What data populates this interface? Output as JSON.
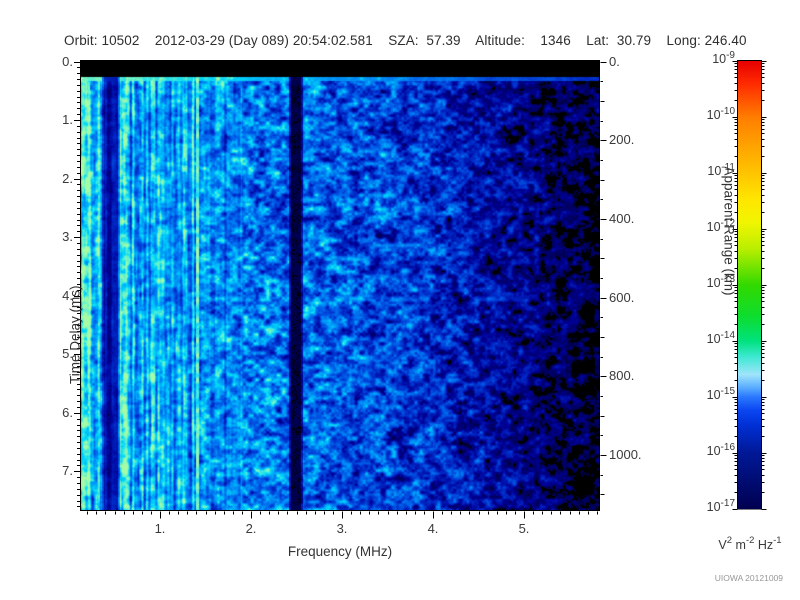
{
  "header": {
    "line": "Orbit: 10502    2012-03-29 (Day 089) 20:54:02.581    SZA:  57.39    Altitude:    1346    Lat:  30.79    Long: 246.40"
  },
  "plot": {
    "x_axis": {
      "label": "Frequency (MHz)",
      "tick_labels": [
        "1.",
        "2.",
        "3.",
        "4.",
        "5."
      ],
      "tick_values": [
        1,
        2,
        3,
        4,
        5
      ]
    },
    "y_axis_left": {
      "label": "Time Delay (ms)",
      "tick_labels": [
        "0.",
        "1.",
        "2.",
        "3.",
        "4.",
        "5.",
        "6.",
        "7."
      ],
      "tick_values": [
        0,
        1,
        2,
        3,
        4,
        5,
        6,
        7
      ]
    },
    "y_axis_right": {
      "label": "Apparent Range (km)",
      "tick_labels": [
        "0.",
        "200.",
        "400.",
        "600.",
        "800.",
        "1000."
      ],
      "tick_values": [
        0,
        200,
        400,
        600,
        800,
        1000
      ]
    }
  },
  "colorbar": {
    "base": "10",
    "tick_exponents": [
      "-9",
      "-10",
      "-11",
      "-12",
      "-13",
      "-14",
      "-15",
      "-16",
      "-17"
    ],
    "unit": {
      "b1": "V",
      "s1": "2",
      "b2": " m",
      "s2": "-2",
      "b3": " Hz",
      "s3": "-1"
    },
    "scale": "log"
  },
  "watermark": "UIOWA 20121009",
  "colors": {
    "background": "#ffffff",
    "frame": "#000000",
    "no_data": "#000000",
    "cmap_high": "#e60000",
    "cmap_low": "#000050"
  },
  "chart_data": {
    "type": "heatmap",
    "description": "Radar sounder ionogram spectrogram: received spectral density vs frequency and time delay",
    "xlabel": "Frequency (MHz)",
    "x_range_mhz": [
      0.1,
      5.8
    ],
    "x_ticks": [
      1,
      2,
      3,
      4,
      5
    ],
    "x_minor_step_mhz": 0.1,
    "ylabel": "Time Delay (ms)",
    "y_range_ms": [
      0,
      7.7
    ],
    "y_ticks_ms": [
      0,
      1,
      2,
      3,
      4,
      5,
      6,
      7
    ],
    "y2label": "Apparent Range (km)",
    "y2_range_km": [
      0,
      1150
    ],
    "y2_ticks_km": [
      0,
      200,
      400,
      600,
      800,
      1000
    ],
    "color_scale": {
      "type": "log",
      "min": 1e-17,
      "max": 1e-09,
      "units": "V^2 m^-2 Hz^-1",
      "colormap": "rainbow, red=1e-9 high to dark-navy=1e-17 low"
    },
    "features": [
      {
        "name": "no-data band",
        "time_delay_ms": [
          0,
          0.27
        ],
        "value": "black (no signal)"
      },
      {
        "name": "strong horizontal echo line",
        "time_delay_ms": [
          0.28,
          0.34
        ],
        "frequency_mhz": [
          0.1,
          5.8
        ],
        "intensity": "bright cyan-green at low frequency fading to blue at high frequency, ~1e-13 to 1e-15"
      },
      {
        "name": "bright striated noise region",
        "frequency_mhz": [
          0.1,
          1.0
        ],
        "intensity": "~1e-14 to 1e-15 cyan vertical striations over all delays"
      },
      {
        "name": "narrow bright interference stripe",
        "frequency_mhz": 1.35,
        "intensity": "~1e-13 pale green, full delay extent"
      },
      {
        "name": "narrow bright stripes",
        "frequency_mhz": [
          0.2,
          0.3
        ],
        "intensity": "cyan, full delay extent"
      },
      {
        "name": "dark attenuation band",
        "frequency_mhz": [
          0.4,
          0.55
        ],
        "intensity": "~1e-16.5"
      },
      {
        "name": "dark vertical gap",
        "frequency_mhz": [
          2.42,
          2.55
        ],
        "intensity": "near 1e-17 / black"
      },
      {
        "name": "diffuse background speckle",
        "frequency_mhz": [
          1.0,
          4.2
        ],
        "intensity": "blue blobs ~1e-16 with cyan spots"
      },
      {
        "name": "sparse dark speckle",
        "frequency_mhz": [
          4.2,
          5.8
        ],
        "intensity": "dim blue blobs on black, near 1e-17"
      }
    ]
  }
}
